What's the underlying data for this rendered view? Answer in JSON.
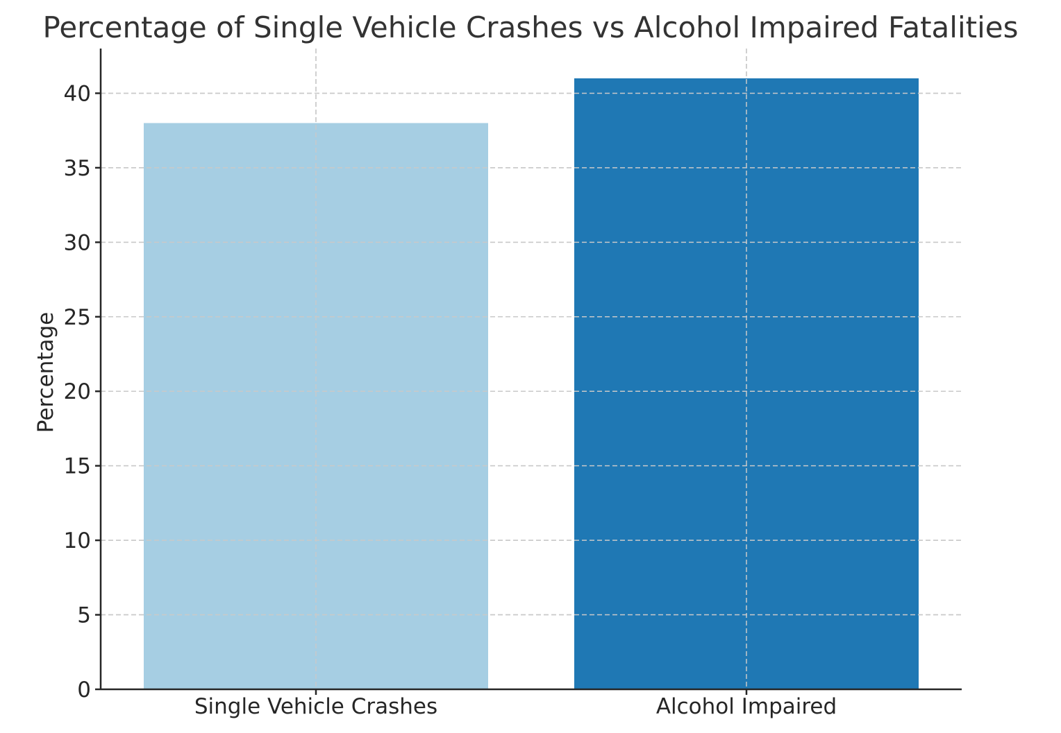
{
  "chart_data": {
    "type": "bar",
    "title": "Percentage of Single Vehicle Crashes vs Alcohol Impaired Fatalities",
    "xlabel": "",
    "ylabel": "Percentage",
    "categories": [
      "Single Vehicle Crashes",
      "Alcohol Impaired"
    ],
    "values": [
      38,
      41
    ],
    "colors": [
      "#a6cee3",
      "#1f78b4"
    ],
    "ylim": [
      0,
      43
    ],
    "yticks": [
      0,
      5,
      10,
      15,
      20,
      25,
      30,
      35,
      40
    ],
    "grid": true
  }
}
